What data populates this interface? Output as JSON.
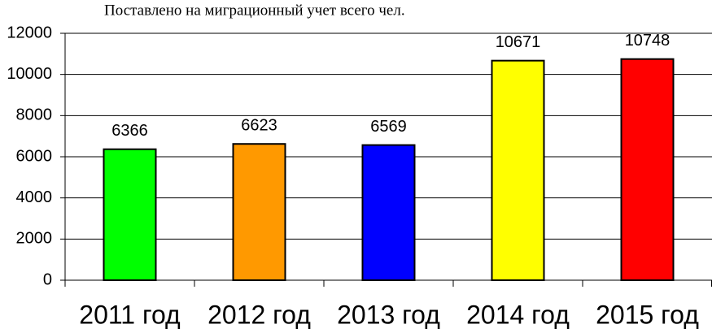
{
  "chart_data": {
    "type": "bar",
    "title": "Поставлено на миграционный учет всего чел.",
    "categories": [
      "2011 год",
      "2012 год",
      "2013 год",
      "2014 год",
      "2015 год"
    ],
    "values": [
      6366,
      6623,
      6569,
      10671,
      10748
    ],
    "colors": [
      "#00ff00",
      "#ff9900",
      "#0000ff",
      "#ffff00",
      "#ff0000"
    ],
    "ylim": [
      0,
      12000
    ],
    "yticks": [
      0,
      2000,
      4000,
      6000,
      8000,
      10000,
      12000
    ],
    "grid": true
  }
}
